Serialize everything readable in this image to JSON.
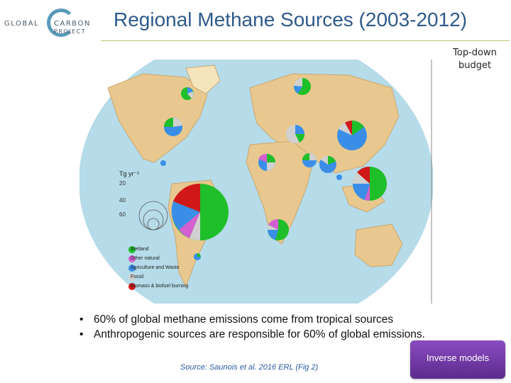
{
  "logo": {
    "word1": "GLOBAL",
    "word2": "CARBON",
    "word3": "PROJECT"
  },
  "title": "Regional Methane Sources (2003-2012)",
  "topdown_label": "Top-down budget",
  "legend": {
    "unit": "Tg yr⁻¹",
    "ticks": [
      "20",
      "40",
      "60"
    ],
    "items": [
      {
        "label": "Wetland",
        "color": "#1fbf2a"
      },
      {
        "label": "Other natural",
        "color": "#d45fd0"
      },
      {
        "label": "Agriculture and Waste",
        "color": "#3b8ee8"
      },
      {
        "label": "Fossil",
        "color": "#d0d0d0"
      },
      {
        "label": "Biomass & biofuel burning",
        "color": "#d01818"
      }
    ]
  },
  "bullets": [
    "60% of global methane emissions come from tropical sources",
    "Anthropogenic sources are responsible for 60% of global emissions."
  ],
  "source": "Source: Saunois et al. 2016 ERL (Fig 2)",
  "button_label": "Inverse models"
}
